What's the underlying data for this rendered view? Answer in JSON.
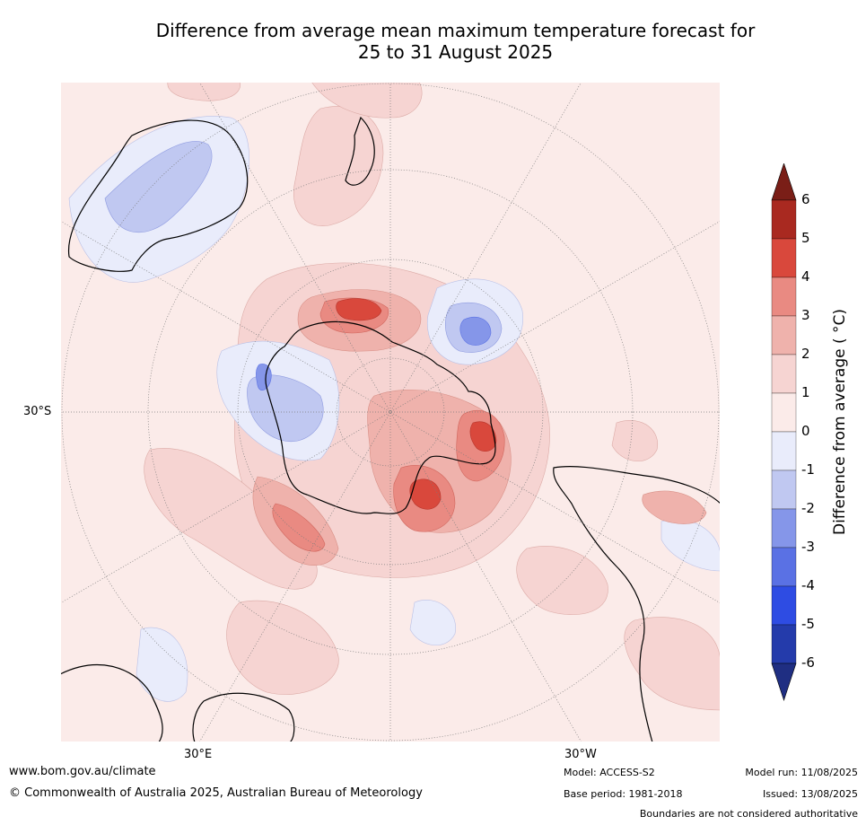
{
  "title": {
    "line1": "Difference from average mean maximum temperature forecast for",
    "line2": "25 to 31 August 2025"
  },
  "map": {
    "projection": "south polar stereographic",
    "background_color": "#fbebe9",
    "labels": {
      "lat": "30°S",
      "lon_east": "30°E",
      "lon_west": "30°W"
    }
  },
  "colorbar": {
    "title": "Difference from average ( °C)",
    "ticks": [
      "6",
      "5",
      "4",
      "3",
      "2",
      "1",
      "0",
      "-1",
      "-2",
      "-3",
      "-4",
      "-5",
      "-6"
    ],
    "colors": [
      "#7a1e17",
      "#a92920",
      "#d9483c",
      "#e98a82",
      "#efb2ac",
      "#f6d4d2",
      "#fbebe9",
      "#e9ecfb",
      "#c0c8f1",
      "#8596e9",
      "#5a71e4",
      "#2e4ce3",
      "#243bab",
      "#1f2e82"
    ]
  },
  "footer": {
    "website": "www.bom.gov.au/climate",
    "copyright": "© Commonwealth of Australia 2025, Australian Bureau of Meteorology",
    "model": "Model: ACCESS-S2",
    "base_period": "Base period: 1981-2018",
    "model_run": "Model run: 11/08/2025",
    "issued": "Issued: 13/08/2025",
    "disclaimer": "Boundaries are not considered authoritative"
  }
}
